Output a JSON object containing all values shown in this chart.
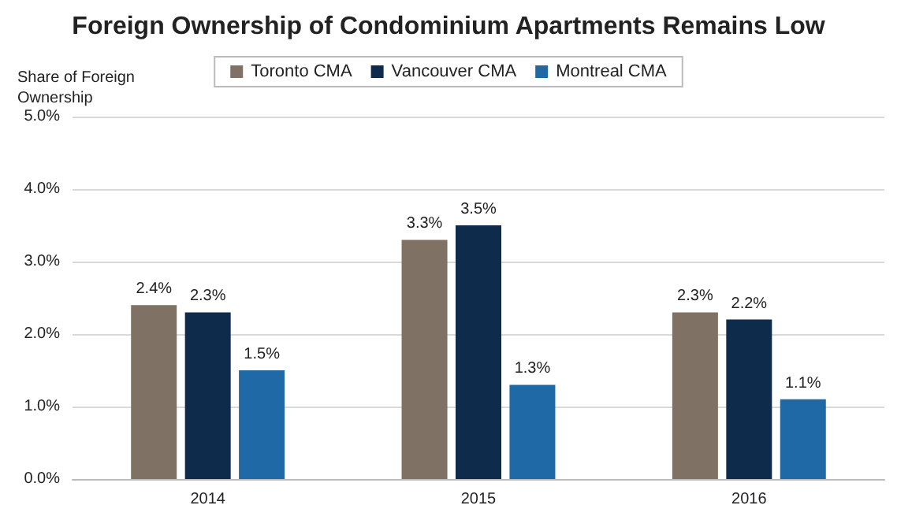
{
  "chart_data": {
    "type": "bar",
    "title": "Foreign Ownership of Condominium Apartments Remains Low",
    "ylabel": "Share of Foreign\nOwnership",
    "categories": [
      "2014",
      "2015",
      "2016"
    ],
    "series": [
      {
        "name": "Toronto CMA",
        "color": "#7f7164",
        "values": [
          2.4,
          3.3,
          2.3
        ],
        "value_labels": [
          "2.4%",
          "3.3%",
          "2.3%"
        ]
      },
      {
        "name": "Vancouver CMA",
        "color": "#0e2b4b",
        "values": [
          2.3,
          3.5,
          2.2
        ],
        "value_labels": [
          "2.3%",
          "3.5%",
          "2.2%"
        ]
      },
      {
        "name": "Montreal CMA",
        "color": "#1f6aa6",
        "values": [
          1.5,
          1.3,
          1.1
        ],
        "value_labels": [
          "1.5%",
          "1.3%",
          "1.1%"
        ]
      }
    ],
    "ylim": [
      0,
      5
    ],
    "yticks": [
      {
        "value": 0,
        "label": "0.0%"
      },
      {
        "value": 1,
        "label": "1.0%"
      },
      {
        "value": 2,
        "label": "2.0%"
      },
      {
        "value": 3,
        "label": "3.0%"
      },
      {
        "value": 4,
        "label": "4.0%"
      },
      {
        "value": 5,
        "label": "5.0%"
      }
    ],
    "grid": "y",
    "legend": "top"
  }
}
